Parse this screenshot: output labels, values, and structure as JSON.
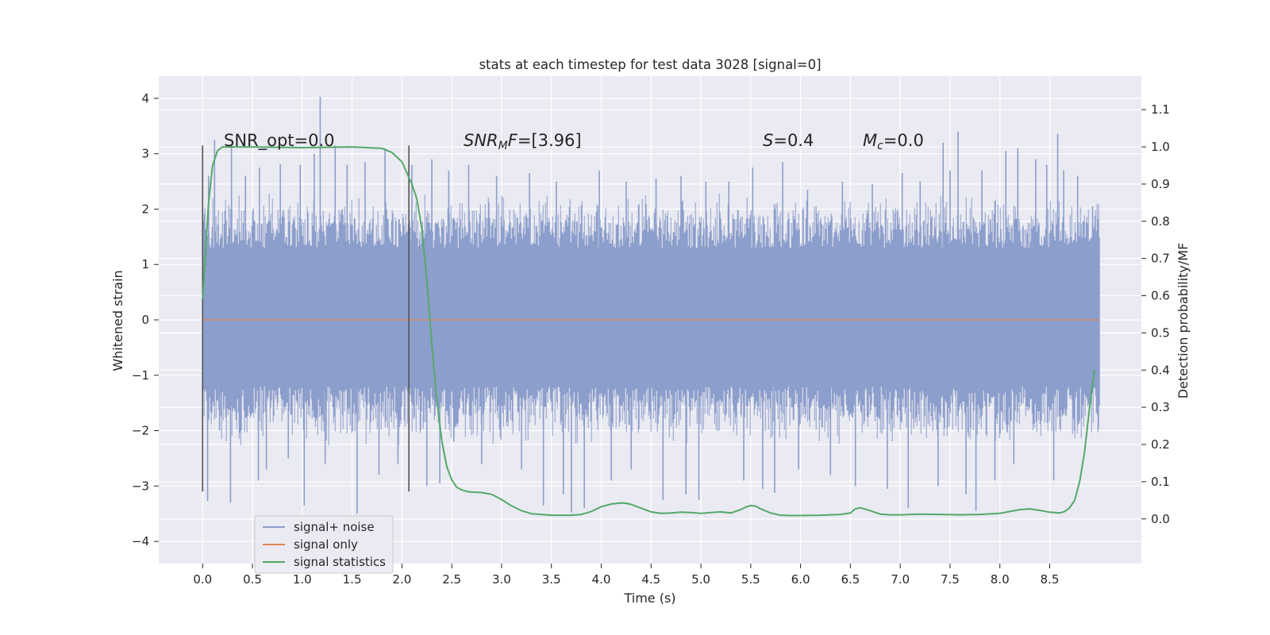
{
  "chart_data": {
    "type": "line",
    "title": "stats at each timestep for test data 3028 [signal=0]",
    "xlabel": "Time (s)",
    "ylabel": "Whitened strain",
    "ylabel_right": "Detection probability/MF",
    "xlim": [
      -0.44,
      9.42
    ],
    "ylim": [
      -4.4,
      4.4
    ],
    "ylim_right": [
      -0.12,
      1.19
    ],
    "x_ticks": [
      "0.0",
      "0.5",
      "1.0",
      "1.5",
      "2.0",
      "2.5",
      "3.0",
      "3.5",
      "4.0",
      "4.5",
      "5.0",
      "5.5",
      "6.0",
      "6.5",
      "7.0",
      "7.5",
      "8.0",
      "8.5"
    ],
    "y_ticks": [
      "4",
      "3",
      "2",
      "1",
      "0",
      "−1",
      "−2",
      "−3",
      "−4"
    ],
    "y_right_ticks": [
      "1.1",
      "1.0",
      "0.9",
      "0.8",
      "0.7",
      "0.6",
      "0.5",
      "0.4",
      "0.3",
      "0.2",
      "0.1",
      "0.0"
    ],
    "grid": true,
    "legend_placement": "lower-left",
    "colors": {
      "signal_noise": "#8c9ecb",
      "signal_only": "#dd8452",
      "signal_statistics": "#55a868",
      "plot_bg": "#eaeaf2",
      "grid": "#ffffff",
      "vline": "#555555"
    },
    "annotations": {
      "snr_opt": "SNR_opt=0.0",
      "snr_mf_prefix": "SNR",
      "snr_mf_sub": "M",
      "snr_mf_suffix": "F=[3.96]",
      "s_var": "S",
      "s_val": "=0.4",
      "mc_var": "M",
      "mc_sub": "c",
      "mc_val": "=0.0"
    },
    "vertical_lines": [
      {
        "x": 0.0,
        "y_range": [
          -3.1,
          3.15
        ]
      },
      {
        "x": 2.07,
        "y_range": [
          -3.1,
          3.15
        ]
      }
    ],
    "noise_band": {
      "x_range": [
        0.0,
        9.0
      ],
      "core_y_range": [
        -1.2,
        1.3
      ],
      "typical_extreme": 2.3
    },
    "noise_spikes": [
      {
        "x": 0.02,
        "y": 1.0
      },
      {
        "x": 0.05,
        "y": -3.27
      },
      {
        "x": 0.06,
        "y": 2.6
      },
      {
        "x": 0.12,
        "y": 3.25
      },
      {
        "x": 0.17,
        "y": -2.0
      },
      {
        "x": 0.28,
        "y": -3.3
      },
      {
        "x": 0.29,
        "y": 3.15
      },
      {
        "x": 0.43,
        "y": 2.6
      },
      {
        "x": 0.56,
        "y": -2.9
      },
      {
        "x": 0.57,
        "y": 2.75
      },
      {
        "x": 0.64,
        "y": -2.7
      },
      {
        "x": 0.78,
        "y": 2.81
      },
      {
        "x": 0.86,
        "y": -2.5
      },
      {
        "x": 0.98,
        "y": 2.8
      },
      {
        "x": 1.02,
        "y": -3.35
      },
      {
        "x": 1.12,
        "y": 3.0
      },
      {
        "x": 1.18,
        "y": 4.03
      },
      {
        "x": 1.23,
        "y": -2.6
      },
      {
        "x": 1.33,
        "y": 3.15
      },
      {
        "x": 1.45,
        "y": 2.8
      },
      {
        "x": 1.55,
        "y": -3.5
      },
      {
        "x": 1.63,
        "y": 2.85
      },
      {
        "x": 1.77,
        "y": -2.8
      },
      {
        "x": 1.83,
        "y": 3.1
      },
      {
        "x": 1.96,
        "y": -2.6
      },
      {
        "x": 2.1,
        "y": 2.8
      },
      {
        "x": 2.25,
        "y": -3.0
      },
      {
        "x": 2.3,
        "y": 2.9
      },
      {
        "x": 2.38,
        "y": -2.95
      },
      {
        "x": 2.47,
        "y": 2.7
      },
      {
        "x": 2.52,
        "y": -2.2
      },
      {
        "x": 2.67,
        "y": 2.8
      },
      {
        "x": 2.8,
        "y": -2.6
      },
      {
        "x": 2.95,
        "y": 2.6
      },
      {
        "x": 3.2,
        "y": -2.7
      },
      {
        "x": 3.28,
        "y": 2.65
      },
      {
        "x": 3.42,
        "y": -3.35
      },
      {
        "x": 3.55,
        "y": 2.5
      },
      {
        "x": 3.62,
        "y": -3.15
      },
      {
        "x": 3.7,
        "y": -3.48
      },
      {
        "x": 3.83,
        "y": -3.4
      },
      {
        "x": 3.98,
        "y": 2.7
      },
      {
        "x": 4.1,
        "y": -2.9
      },
      {
        "x": 4.25,
        "y": 2.5
      },
      {
        "x": 4.3,
        "y": -2.7
      },
      {
        "x": 4.55,
        "y": 2.55
      },
      {
        "x": 4.62,
        "y": -3.25
      },
      {
        "x": 4.8,
        "y": 2.6
      },
      {
        "x": 4.85,
        "y": -3.15
      },
      {
        "x": 4.98,
        "y": -3.25
      },
      {
        "x": 5.05,
        "y": 2.5
      },
      {
        "x": 5.28,
        "y": 2.5
      },
      {
        "x": 5.43,
        "y": -2.9
      },
      {
        "x": 5.52,
        "y": 2.75
      },
      {
        "x": 5.62,
        "y": -3.05
      },
      {
        "x": 5.74,
        "y": -3.12
      },
      {
        "x": 5.82,
        "y": 2.85
      },
      {
        "x": 5.98,
        "y": -2.7
      },
      {
        "x": 6.07,
        "y": 2.35
      },
      {
        "x": 6.3,
        "y": -2.8
      },
      {
        "x": 6.42,
        "y": 2.5
      },
      {
        "x": 6.55,
        "y": -3.0
      },
      {
        "x": 6.72,
        "y": 2.45
      },
      {
        "x": 6.87,
        "y": -3.05
      },
      {
        "x": 7.02,
        "y": 2.65
      },
      {
        "x": 7.08,
        "y": -3.4
      },
      {
        "x": 7.2,
        "y": 2.5
      },
      {
        "x": 7.38,
        "y": -3.0
      },
      {
        "x": 7.43,
        "y": 3.2
      },
      {
        "x": 7.5,
        "y": 2.7
      },
      {
        "x": 7.58,
        "y": 3.4
      },
      {
        "x": 7.66,
        "y": -3.15
      },
      {
        "x": 7.76,
        "y": -3.45
      },
      {
        "x": 7.82,
        "y": 2.7
      },
      {
        "x": 7.95,
        "y": -2.9
      },
      {
        "x": 8.06,
        "y": 3.05
      },
      {
        "x": 8.14,
        "y": -2.6
      },
      {
        "x": 8.18,
        "y": 3.1
      },
      {
        "x": 8.36,
        "y": 2.9
      },
      {
        "x": 8.47,
        "y": 2.8
      },
      {
        "x": 8.54,
        "y": -2.9
      },
      {
        "x": 8.58,
        "y": 3.36
      },
      {
        "x": 8.64,
        "y": 2.7
      },
      {
        "x": 8.78,
        "y": 2.6
      },
      {
        "x": 8.93,
        "y": 2.05
      },
      {
        "x": 8.97,
        "y": -1.3
      }
    ],
    "series": [
      {
        "name": "signal+ noise",
        "axis": "left",
        "style": "noise"
      },
      {
        "name": "signal only",
        "axis": "left",
        "x": [
          0.0,
          9.0
        ],
        "y": [
          0.0,
          0.0
        ]
      },
      {
        "name": "signal statistics",
        "axis": "right",
        "x": [
          0.0,
          0.03,
          0.06,
          0.1,
          0.15,
          0.2,
          0.3,
          0.5,
          1.0,
          1.5,
          1.8,
          1.9,
          2.0,
          2.05,
          2.1,
          2.15,
          2.2,
          2.25,
          2.3,
          2.35,
          2.4,
          2.45,
          2.5,
          2.55,
          2.6,
          2.65,
          2.7,
          2.8,
          2.9,
          3.0,
          3.1,
          3.2,
          3.3,
          3.5,
          3.7,
          3.8,
          3.9,
          4.0,
          4.1,
          4.2,
          4.25,
          4.3,
          4.4,
          4.5,
          4.6,
          4.7,
          4.8,
          4.9,
          5.0,
          5.1,
          5.2,
          5.3,
          5.4,
          5.45,
          5.5,
          5.55,
          5.6,
          5.7,
          5.8,
          5.9,
          6.0,
          6.2,
          6.4,
          6.5,
          6.55,
          6.6,
          6.7,
          6.8,
          6.9,
          7.0,
          7.2,
          7.4,
          7.6,
          7.8,
          8.0,
          8.1,
          8.2,
          8.3,
          8.4,
          8.5,
          8.6,
          8.65,
          8.7,
          8.75,
          8.8,
          8.85,
          8.9,
          8.95
        ],
        "y": [
          0.59,
          0.72,
          0.85,
          0.95,
          0.99,
          1.0,
          1.0,
          1.0,
          0.998,
          1.0,
          0.996,
          0.985,
          0.96,
          0.93,
          0.9,
          0.86,
          0.78,
          0.64,
          0.47,
          0.32,
          0.21,
          0.14,
          0.105,
          0.085,
          0.078,
          0.074,
          0.072,
          0.071,
          0.066,
          0.052,
          0.035,
          0.022,
          0.014,
          0.01,
          0.01,
          0.012,
          0.02,
          0.033,
          0.04,
          0.043,
          0.042,
          0.039,
          0.029,
          0.019,
          0.015,
          0.016,
          0.018,
          0.017,
          0.015,
          0.017,
          0.019,
          0.016,
          0.025,
          0.032,
          0.036,
          0.034,
          0.027,
          0.016,
          0.01,
          0.009,
          0.009,
          0.01,
          0.012,
          0.016,
          0.027,
          0.03,
          0.022,
          0.013,
          0.011,
          0.011,
          0.013,
          0.012,
          0.011,
          0.012,
          0.015,
          0.02,
          0.025,
          0.027,
          0.023,
          0.018,
          0.016,
          0.02,
          0.03,
          0.05,
          0.1,
          0.18,
          0.3,
          0.4
        ]
      }
    ]
  }
}
